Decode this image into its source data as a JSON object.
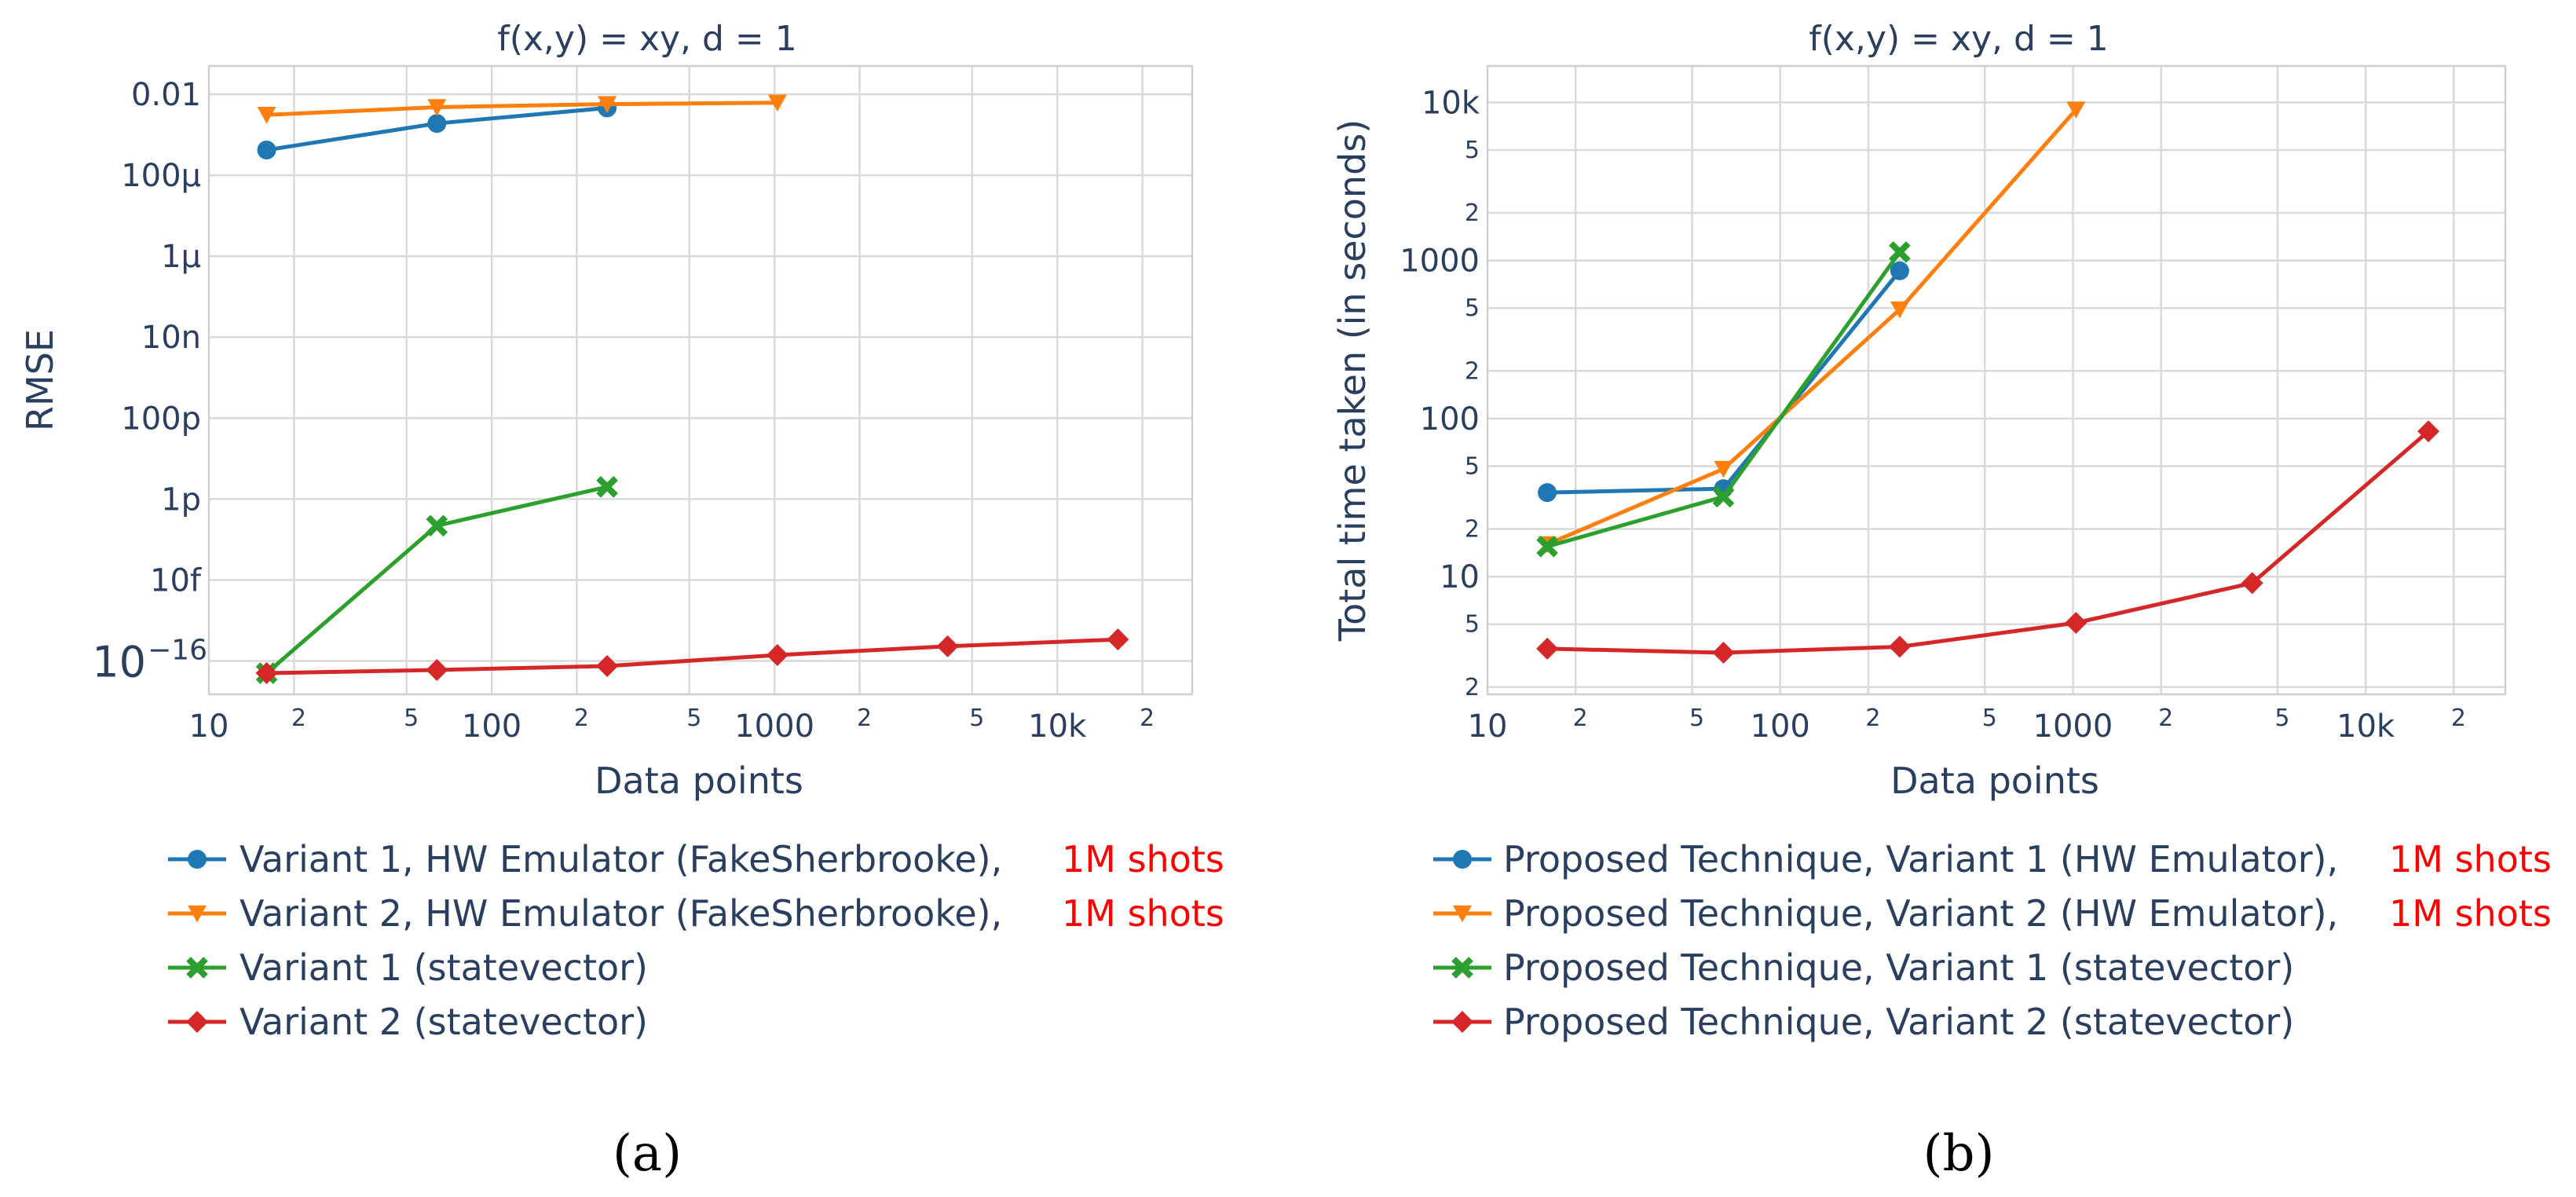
{
  "colors": {
    "variant1_hw": "#1f77b4",
    "variant2_hw": "#ff7f0e",
    "variant1_sv": "#2ca02c",
    "variant2_sv": "#d62728",
    "shots_highlight": "#ff0000",
    "text": "#2a3f5f",
    "grid": "#d9d9d9"
  },
  "chart_data": [
    {
      "type": "line",
      "caption": "(a)",
      "title": "f(x,y) = xy, d = 1",
      "xlabel": "Data points",
      "ylabel": "RMSE",
      "xscale": "log",
      "yscale": "log",
      "xlim": [
        10,
        30000
      ],
      "ylim": [
        1.5e-17,
        0.05
      ],
      "grid": true,
      "legend_position": "bottom",
      "x_major_ticks": [
        {
          "value": 10,
          "label": "10"
        },
        {
          "value": 100,
          "label": "100"
        },
        {
          "value": 1000,
          "label": "1000"
        },
        {
          "value": 10000,
          "label": "10k"
        }
      ],
      "x_minor_ticks": [
        {
          "value": 20,
          "label": "2"
        },
        {
          "value": 50,
          "label": "5"
        },
        {
          "value": 200,
          "label": "2"
        },
        {
          "value": 500,
          "label": "5"
        },
        {
          "value": 2000,
          "label": "2"
        },
        {
          "value": 5000,
          "label": "5"
        },
        {
          "value": 20000,
          "label": "2"
        }
      ],
      "y_major_ticks": [
        {
          "value": 1e-16,
          "label": "10",
          "exponent": "−16"
        },
        {
          "value": 1e-14,
          "label": "10f"
        },
        {
          "value": 1e-12,
          "label": "1p"
        },
        {
          "value": 1e-10,
          "label": "100p"
        },
        {
          "value": 1e-08,
          "label": "10n"
        },
        {
          "value": 1e-06,
          "label": "1µ"
        },
        {
          "value": 0.0001,
          "label": "100µ"
        },
        {
          "value": 0.01,
          "label": "0.01"
        }
      ],
      "series": [
        {
          "name": "Variant 1, HW Emulator (FakeSherbrooke),",
          "suffix": "1M shots",
          "color": "#1f77b4",
          "marker": "circle",
          "x": [
            16,
            64,
            256
          ],
          "y": [
            0.00042,
            0.0019,
            0.0046
          ]
        },
        {
          "name": "Variant 2, HW Emulator (FakeSherbrooke),",
          "suffix": "1M shots",
          "color": "#ff7f0e",
          "marker": "triangle-down",
          "x": [
            16,
            64,
            256,
            1024
          ],
          "y": [
            0.0031,
            0.0048,
            0.0057,
            0.0062
          ]
        },
        {
          "name": "Variant 1 (statevector)",
          "suffix": "",
          "color": "#2ca02c",
          "marker": "x",
          "x": [
            16,
            64,
            256
          ],
          "y": [
            5e-17,
            2.2e-13,
            2e-12
          ]
        },
        {
          "name": "Variant 2 (statevector)",
          "suffix": "",
          "color": "#d62728",
          "marker": "diamond",
          "x": [
            16,
            64,
            256,
            1024,
            4096,
            16384
          ],
          "y": [
            5e-17,
            6e-17,
            7.5e-17,
            1.4e-16,
            2.3e-16,
            3.4e-16
          ]
        }
      ]
    },
    {
      "type": "line",
      "caption": "(b)",
      "title": "f(x,y) = xy, d = 1",
      "xlabel": "Data points",
      "ylabel": "Total time taken (in seconds)",
      "xscale": "log",
      "yscale": "log",
      "xlim": [
        10,
        30000
      ],
      "ylim": [
        1.8,
        17000
      ],
      "grid": true,
      "legend_position": "bottom",
      "x_major_ticks": [
        {
          "value": 10,
          "label": "10"
        },
        {
          "value": 100,
          "label": "100"
        },
        {
          "value": 1000,
          "label": "1000"
        },
        {
          "value": 10000,
          "label": "10k"
        }
      ],
      "x_minor_ticks": [
        {
          "value": 20,
          "label": "2"
        },
        {
          "value": 50,
          "label": "5"
        },
        {
          "value": 200,
          "label": "2"
        },
        {
          "value": 500,
          "label": "5"
        },
        {
          "value": 2000,
          "label": "2"
        },
        {
          "value": 5000,
          "label": "5"
        },
        {
          "value": 20000,
          "label": "2"
        }
      ],
      "y_major_ticks": [
        {
          "value": 10,
          "label": "10"
        },
        {
          "value": 100,
          "label": "100"
        },
        {
          "value": 1000,
          "label": "1000"
        },
        {
          "value": 10000,
          "label": "10k"
        }
      ],
      "y_minor_ticks": [
        {
          "value": 2,
          "label": "2"
        },
        {
          "value": 5,
          "label": "5"
        },
        {
          "value": 20,
          "label": "2"
        },
        {
          "value": 50,
          "label": "5"
        },
        {
          "value": 200,
          "label": "2"
        },
        {
          "value": 500,
          "label": "5"
        },
        {
          "value": 2000,
          "label": "2"
        },
        {
          "value": 5000,
          "label": "5"
        }
      ],
      "series": [
        {
          "name": "Proposed Technique, Variant 1 (HW Emulator),",
          "suffix": "1M shots",
          "color": "#1f77b4",
          "marker": "circle",
          "x": [
            16,
            64,
            256
          ],
          "y": [
            34,
            36,
            860
          ]
        },
        {
          "name": "Proposed Technique, Variant 2 (HW Emulator),",
          "suffix": "1M shots",
          "color": "#ff7f0e",
          "marker": "triangle-down",
          "x": [
            16,
            64,
            256,
            1024
          ],
          "y": [
            16,
            48,
            490,
            9000
          ]
        },
        {
          "name": "Proposed Technique, Variant 1 (statevector)",
          "suffix": "",
          "color": "#2ca02c",
          "marker": "x",
          "x": [
            16,
            64,
            256
          ],
          "y": [
            15.5,
            32,
            1130
          ]
        },
        {
          "name": "Proposed Technique, Variant 2 (statevector)",
          "suffix": "",
          "color": "#d62728",
          "marker": "diamond",
          "x": [
            16,
            64,
            256,
            1024,
            4096,
            16384
          ],
          "y": [
            3.5,
            3.3,
            3.6,
            5.1,
            9.1,
            83
          ]
        }
      ]
    }
  ]
}
